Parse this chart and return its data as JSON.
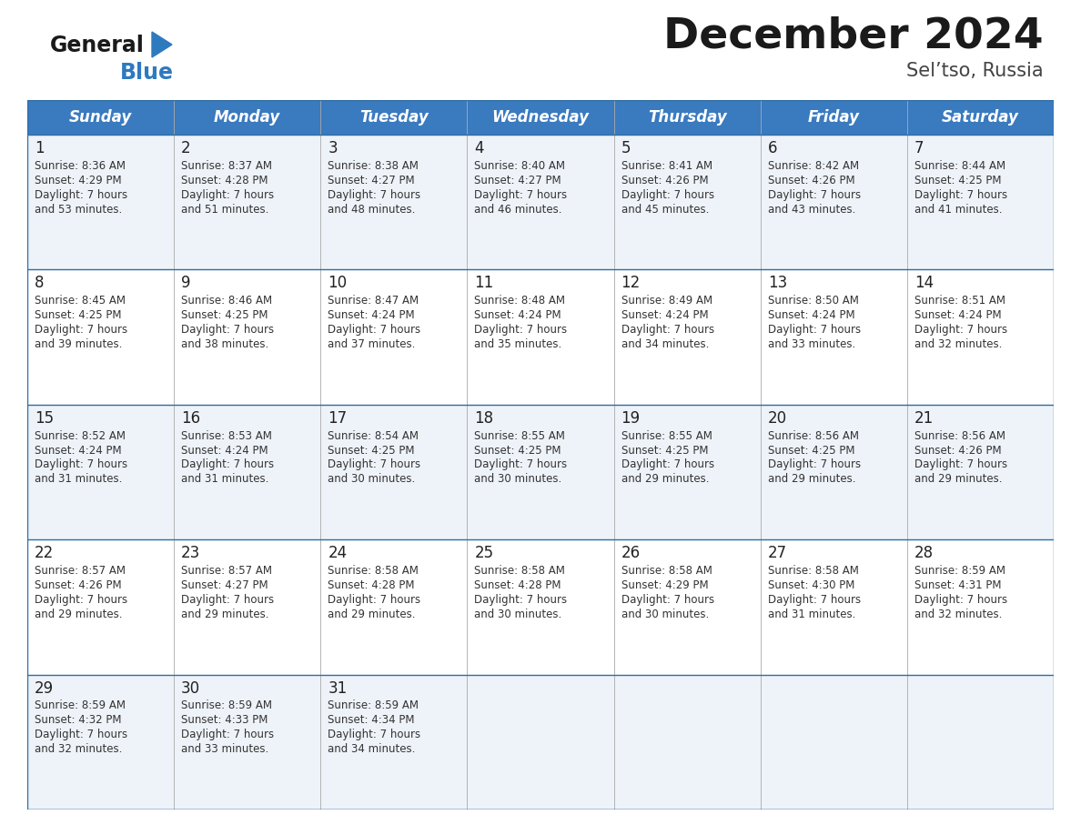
{
  "title": "December 2024",
  "subtitle": "Sel’tso, Russia",
  "header_color": "#3a7abf",
  "header_text_color": "#ffffff",
  "day_names": [
    "Sunday",
    "Monday",
    "Tuesday",
    "Wednesday",
    "Thursday",
    "Friday",
    "Saturday"
  ],
  "title_color": "#1a1a1a",
  "subtitle_color": "#444444",
  "cell_bg_even": "#eef3f9",
  "cell_bg_odd": "#ffffff",
  "line_color": "#2e6da4",
  "day_number_color": "#222222",
  "text_color": "#333333",
  "logo_color_general": "#1a1a1a",
  "logo_color_blue": "#2e7abf",
  "calendar_data": [
    [
      {
        "day": 1,
        "sunrise": "8:36 AM",
        "sunset": "4:29 PM",
        "daylight": "7 hours and 53 minutes."
      },
      {
        "day": 2,
        "sunrise": "8:37 AM",
        "sunset": "4:28 PM",
        "daylight": "7 hours and 51 minutes."
      },
      {
        "day": 3,
        "sunrise": "8:38 AM",
        "sunset": "4:27 PM",
        "daylight": "7 hours and 48 minutes."
      },
      {
        "day": 4,
        "sunrise": "8:40 AM",
        "sunset": "4:27 PM",
        "daylight": "7 hours and 46 minutes."
      },
      {
        "day": 5,
        "sunrise": "8:41 AM",
        "sunset": "4:26 PM",
        "daylight": "7 hours and 45 minutes."
      },
      {
        "day": 6,
        "sunrise": "8:42 AM",
        "sunset": "4:26 PM",
        "daylight": "7 hours and 43 minutes."
      },
      {
        "day": 7,
        "sunrise": "8:44 AM",
        "sunset": "4:25 PM",
        "daylight": "7 hours and 41 minutes."
      }
    ],
    [
      {
        "day": 8,
        "sunrise": "8:45 AM",
        "sunset": "4:25 PM",
        "daylight": "7 hours and 39 minutes."
      },
      {
        "day": 9,
        "sunrise": "8:46 AM",
        "sunset": "4:25 PM",
        "daylight": "7 hours and 38 minutes."
      },
      {
        "day": 10,
        "sunrise": "8:47 AM",
        "sunset": "4:24 PM",
        "daylight": "7 hours and 37 minutes."
      },
      {
        "day": 11,
        "sunrise": "8:48 AM",
        "sunset": "4:24 PM",
        "daylight": "7 hours and 35 minutes."
      },
      {
        "day": 12,
        "sunrise": "8:49 AM",
        "sunset": "4:24 PM",
        "daylight": "7 hours and 34 minutes."
      },
      {
        "day": 13,
        "sunrise": "8:50 AM",
        "sunset": "4:24 PM",
        "daylight": "7 hours and 33 minutes."
      },
      {
        "day": 14,
        "sunrise": "8:51 AM",
        "sunset": "4:24 PM",
        "daylight": "7 hours and 32 minutes."
      }
    ],
    [
      {
        "day": 15,
        "sunrise": "8:52 AM",
        "sunset": "4:24 PM",
        "daylight": "7 hours and 31 minutes."
      },
      {
        "day": 16,
        "sunrise": "8:53 AM",
        "sunset": "4:24 PM",
        "daylight": "7 hours and 31 minutes."
      },
      {
        "day": 17,
        "sunrise": "8:54 AM",
        "sunset": "4:25 PM",
        "daylight": "7 hours and 30 minutes."
      },
      {
        "day": 18,
        "sunrise": "8:55 AM",
        "sunset": "4:25 PM",
        "daylight": "7 hours and 30 minutes."
      },
      {
        "day": 19,
        "sunrise": "8:55 AM",
        "sunset": "4:25 PM",
        "daylight": "7 hours and 29 minutes."
      },
      {
        "day": 20,
        "sunrise": "8:56 AM",
        "sunset": "4:25 PM",
        "daylight": "7 hours and 29 minutes."
      },
      {
        "day": 21,
        "sunrise": "8:56 AM",
        "sunset": "4:26 PM",
        "daylight": "7 hours and 29 minutes."
      }
    ],
    [
      {
        "day": 22,
        "sunrise": "8:57 AM",
        "sunset": "4:26 PM",
        "daylight": "7 hours and 29 minutes."
      },
      {
        "day": 23,
        "sunrise": "8:57 AM",
        "sunset": "4:27 PM",
        "daylight": "7 hours and 29 minutes."
      },
      {
        "day": 24,
        "sunrise": "8:58 AM",
        "sunset": "4:28 PM",
        "daylight": "7 hours and 29 minutes."
      },
      {
        "day": 25,
        "sunrise": "8:58 AM",
        "sunset": "4:28 PM",
        "daylight": "7 hours and 30 minutes."
      },
      {
        "day": 26,
        "sunrise": "8:58 AM",
        "sunset": "4:29 PM",
        "daylight": "7 hours and 30 minutes."
      },
      {
        "day": 27,
        "sunrise": "8:58 AM",
        "sunset": "4:30 PM",
        "daylight": "7 hours and 31 minutes."
      },
      {
        "day": 28,
        "sunrise": "8:59 AM",
        "sunset": "4:31 PM",
        "daylight": "7 hours and 32 minutes."
      }
    ],
    [
      {
        "day": 29,
        "sunrise": "8:59 AM",
        "sunset": "4:32 PM",
        "daylight": "7 hours and 32 minutes."
      },
      {
        "day": 30,
        "sunrise": "8:59 AM",
        "sunset": "4:33 PM",
        "daylight": "7 hours and 33 minutes."
      },
      {
        "day": 31,
        "sunrise": "8:59 AM",
        "sunset": "4:34 PM",
        "daylight": "7 hours and 34 minutes."
      },
      null,
      null,
      null,
      null
    ]
  ]
}
